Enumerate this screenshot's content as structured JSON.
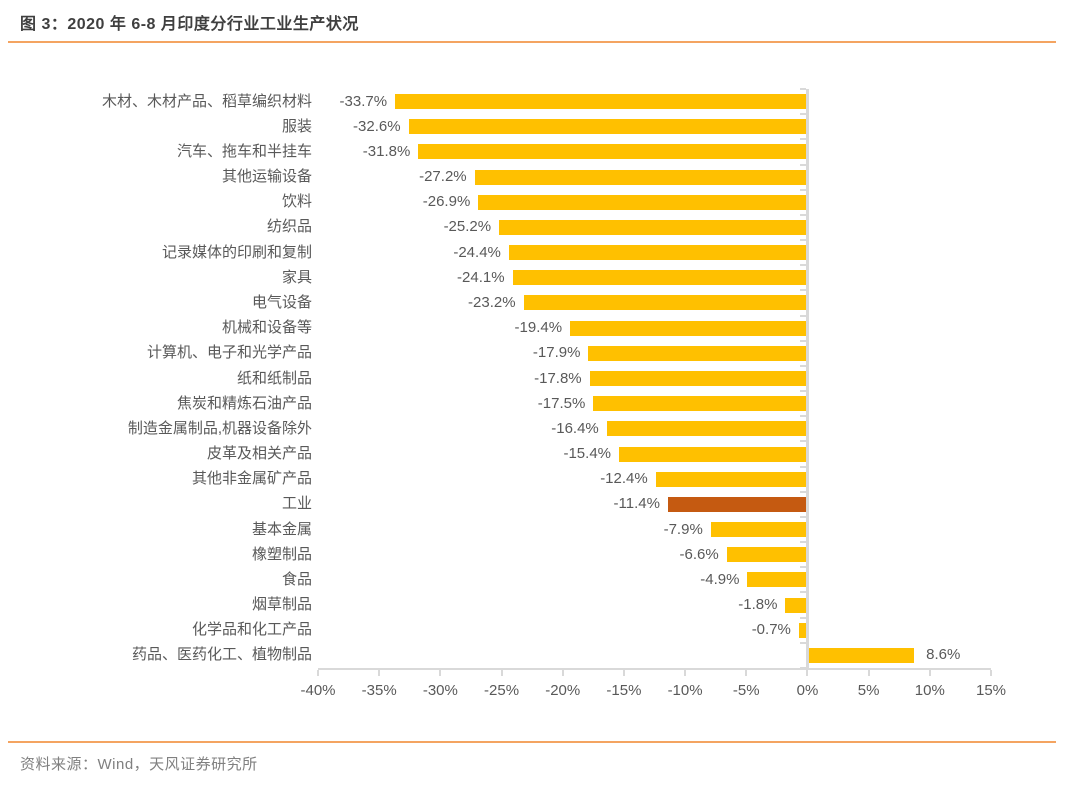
{
  "header": {
    "title": "图 3：2020 年 6-8 月印度分行业工业生产状况"
  },
  "footer": {
    "source": "资料来源：Wind，天风证券研究所"
  },
  "colors": {
    "bar": "#FFC000",
    "highlight_bar": "#C55A11",
    "axis": "#D9D9D9",
    "text_label": "#595959",
    "title_text": "#3F3F3F",
    "orange_rule": "#F4A461",
    "source_text": "#808080"
  },
  "chart_data": {
    "type": "bar",
    "orientation": "horizontal",
    "title": "2020年6-8月印度分行业工业生产状况",
    "categories": [
      "木材、木材产品、稻草编织材料",
      "服装",
      "汽车、拖车和半挂车",
      "其他运输设备",
      "饮料",
      "纺织品",
      "记录媒体的印刷和复制",
      "家具",
      "电气设备",
      "机械和设备等",
      "计算机、电子和光学产品",
      "纸和纸制品",
      "焦炭和精炼石油产品",
      "制造金属制品,机器设备除外",
      "皮革及相关产品",
      "其他非金属矿产品",
      "工业",
      "基本金属",
      "橡塑制品",
      "食品",
      "烟草制品",
      "化学品和化工产品",
      "药品、医药化工、植物制品"
    ],
    "values": [
      -33.7,
      -32.6,
      -31.8,
      -27.2,
      -26.9,
      -25.2,
      -24.4,
      -24.1,
      -23.2,
      -19.4,
      -17.9,
      -17.8,
      -17.5,
      -16.4,
      -15.4,
      -12.4,
      -11.4,
      -7.9,
      -6.6,
      -4.9,
      -1.8,
      -0.7,
      8.6
    ],
    "value_labels": [
      "-33.7%",
      "-32.6%",
      "-31.8%",
      "-27.2%",
      "-26.9%",
      "-25.2%",
      "-24.4%",
      "-24.1%",
      "-23.2%",
      "-19.4%",
      "-17.9%",
      "-17.8%",
      "-17.5%",
      "-16.4%",
      "-15.4%",
      "-12.4%",
      "-11.4%",
      "-7.9%",
      "-6.6%",
      "-4.9%",
      "-1.8%",
      "-0.7%",
      "8.6%"
    ],
    "highlight_index": 16,
    "highlight_category": "工业",
    "x_ticks": [
      "-40%",
      "-35%",
      "-30%",
      "-25%",
      "-20%",
      "-15%",
      "-10%",
      "-5%",
      "0%",
      "5%",
      "10%",
      "15%"
    ],
    "x_tick_values": [
      -40,
      -35,
      -30,
      -25,
      -20,
      -15,
      -10,
      -5,
      0,
      5,
      10,
      15
    ],
    "xlim": [
      -40,
      15
    ],
    "grid": false,
    "legend": "none",
    "unit": "percent"
  }
}
